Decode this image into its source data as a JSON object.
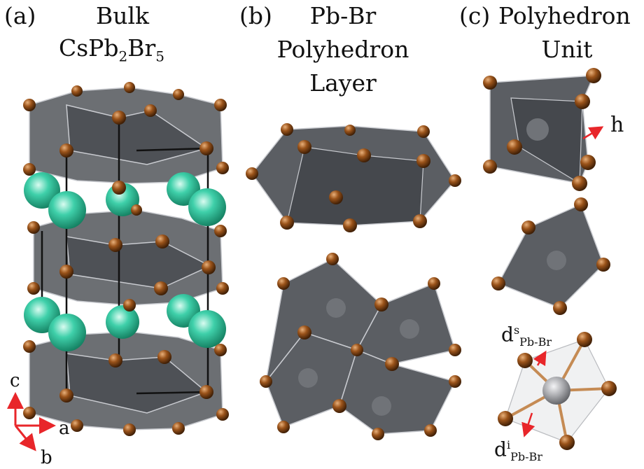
{
  "panels": {
    "a": {
      "tag": "(a)",
      "title_line1": "Bulk",
      "formula_parts": [
        "CsPb",
        "2",
        "Br",
        "5"
      ]
    },
    "b": {
      "tag": "(b)",
      "title_line1": "Pb-Br",
      "title_line2": "Polyhedron",
      "title_line3": "Layer"
    },
    "c": {
      "tag": "(c)",
      "title_line1": "Polyhedron",
      "title_line2": "Unit"
    }
  },
  "axes": {
    "c": "c",
    "a": "a",
    "b": "b"
  },
  "labels": {
    "h": "h",
    "d_surface": {
      "base": "d",
      "sup": "s",
      "sub": "Pb-Br"
    },
    "d_inner": {
      "base": "d",
      "sup": "i",
      "sub": "Pb-Br"
    }
  },
  "colors": {
    "polyhedron": "#5b5e63",
    "polyhedron_dark": "#45484d",
    "br_atom": "#8a4a14",
    "cs_atom": "#39c9a3",
    "arrow": "#e8262a",
    "cell_edge": "#111111"
  }
}
